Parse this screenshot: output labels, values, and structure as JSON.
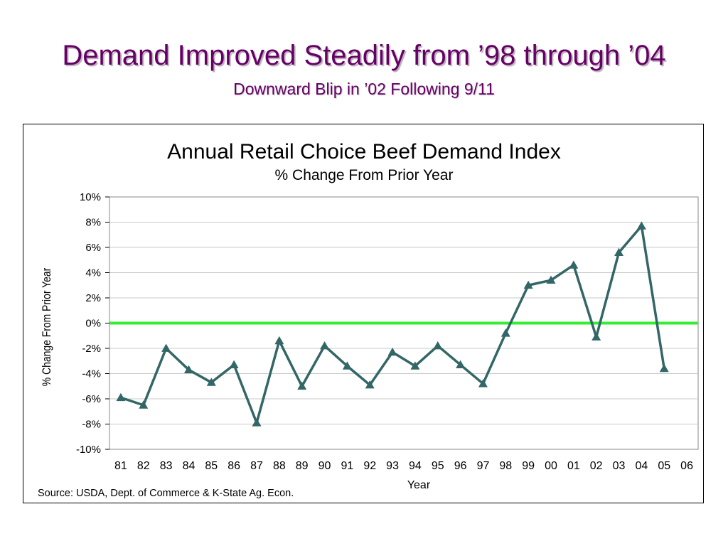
{
  "slide": {
    "title": "Demand Improved Steadily from ’98 through ’04",
    "subtitle": "Downward Blip in ’02 Following 9/11"
  },
  "chart_data": {
    "type": "line",
    "title": "Annual Retail Choice Beef Demand Index",
    "subtitle": "% Change From Prior Year",
    "xlabel": "Year",
    "ylabel": "% Change From Prior Year",
    "source": "Source: USDA, Dept. of Commerce & K-State Ag. Econ.",
    "categories": [
      "81",
      "82",
      "83",
      "84",
      "85",
      "86",
      "87",
      "88",
      "89",
      "90",
      "91",
      "92",
      "93",
      "94",
      "95",
      "96",
      "97",
      "98",
      "99",
      "00",
      "01",
      "02",
      "03",
      "04",
      "05",
      "06"
    ],
    "series": [
      {
        "values": [
          -5.9,
          -6.5,
          -2.0,
          -3.7,
          -4.7,
          -3.3,
          -7.9,
          -1.4,
          -5.0,
          -1.8,
          -3.4,
          -4.9,
          -2.3,
          -3.4,
          -1.8,
          -3.3,
          -4.8,
          -0.8,
          3.0,
          3.4,
          4.6,
          -1.1,
          5.6,
          7.7,
          -3.6,
          null
        ],
        "color": "#336666",
        "marker": "triangle"
      }
    ],
    "reference_line": {
      "value": 0,
      "color": "#33ee33"
    },
    "ylim": [
      -10,
      10
    ],
    "y_ticks": [
      10,
      8,
      6,
      4,
      2,
      0,
      -2,
      -4,
      -6,
      -8,
      -10
    ],
    "y_tick_labels": [
      "10%",
      "8%",
      "6%",
      "4%",
      "2%",
      "0%",
      "-2%",
      "-4%",
      "-6%",
      "-8%",
      "-10%"
    ],
    "grid": true,
    "legend": "none"
  }
}
